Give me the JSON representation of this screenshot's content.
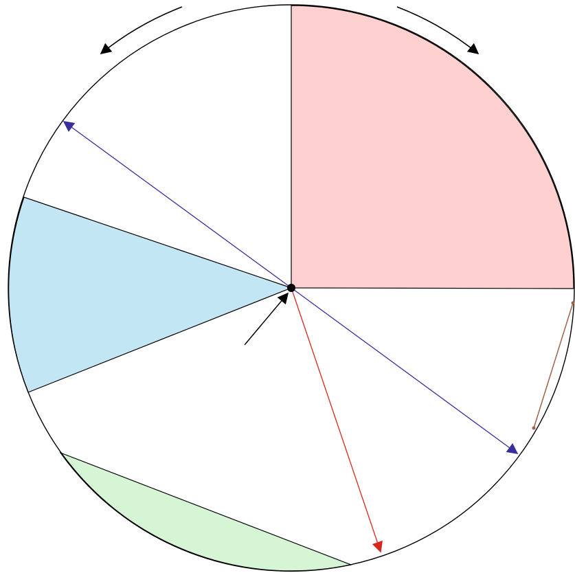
{
  "colors": {
    "outline": "#000000",
    "quadrant_fill": "#ffd0d0",
    "sector_fill": "#c3e6f4",
    "segment_fill": "#d5f5d5",
    "diameter_arrow": "#3a2e9e",
    "radius_arrow": "#d8261c",
    "chord": "#a0624a",
    "center_point": "#000000",
    "rotation_arrows": "#000000",
    "pointer_arrow": "#000000"
  },
  "icons": {
    "center": "dot",
    "rotation": "curved-arrow",
    "pointer": "straight-arrow"
  }
}
